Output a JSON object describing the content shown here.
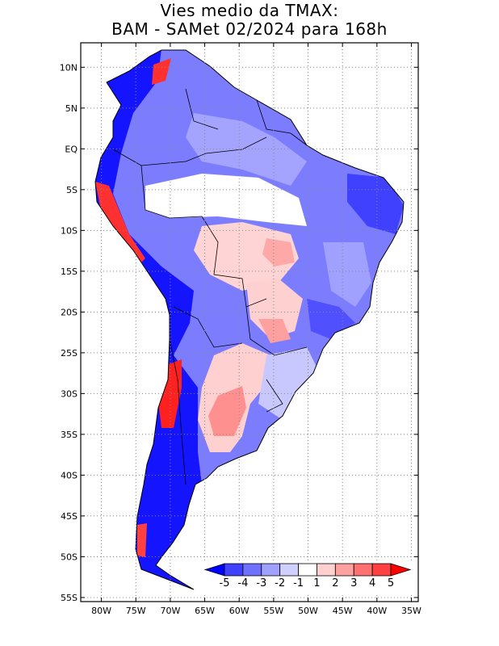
{
  "title": {
    "line1": "Vies medio da TMAX:",
    "line2": "BAM - SAMet 02/2024  para 168h"
  },
  "map": {
    "region": "South America",
    "variable": "TMAX bias",
    "lat_range": [
      -55.5,
      13
    ],
    "lon_range": [
      -83,
      -34
    ],
    "lat_ticks": [
      "10N",
      "5N",
      "EQ",
      "5S",
      "10S",
      "15S",
      "20S",
      "25S",
      "30S",
      "35S",
      "40S",
      "45S",
      "50S",
      "55S"
    ],
    "lat_values": [
      10,
      5,
      0,
      -5,
      -10,
      -15,
      -20,
      -25,
      -30,
      -35,
      -40,
      -45,
      -50,
      -55
    ],
    "lon_ticks": [
      "80W",
      "75W",
      "70W",
      "65W",
      "60W",
      "55W",
      "50W",
      "45W",
      "40W",
      "35W"
    ],
    "lon_values": [
      -80,
      -75,
      -70,
      -65,
      -60,
      -55,
      -50,
      -45,
      -40,
      -35
    ]
  },
  "colorbar": {
    "labels": [
      "-5",
      "-4",
      "-3",
      "-2",
      "-1",
      "1",
      "2",
      "3",
      "4",
      "5"
    ],
    "colors": [
      "#0000ff",
      "#4040ff",
      "#7070ff",
      "#a0a0ff",
      "#d0d0ff",
      "#ffffff",
      "#ffd0d0",
      "#ffa0a0",
      "#ff7070",
      "#ff4040",
      "#ff0000"
    ]
  }
}
